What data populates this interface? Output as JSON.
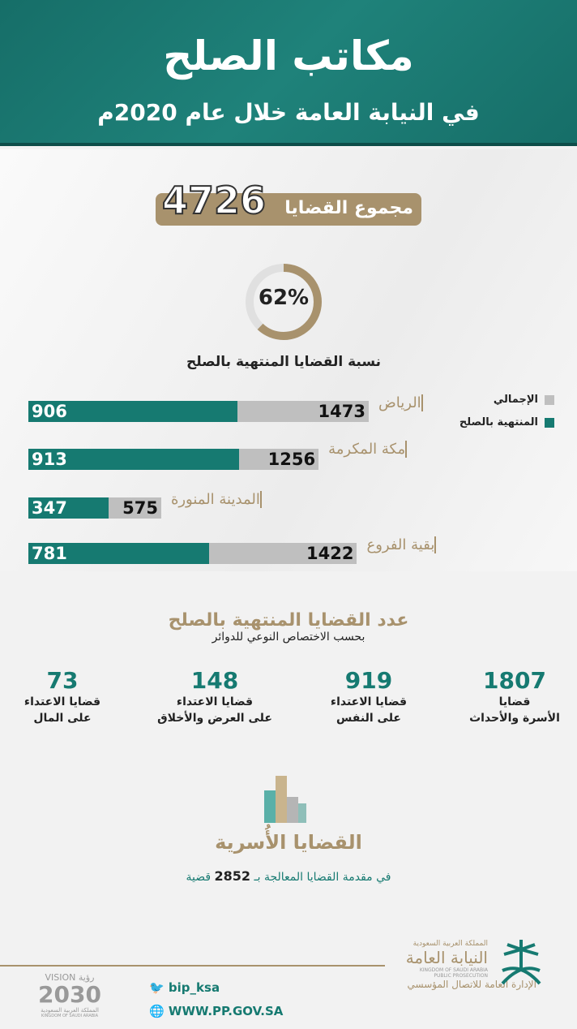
{
  "header": {
    "title": "مكاتب الصلح",
    "subtitle": "في النيابة العامة خلال عام 2020م"
  },
  "total": {
    "label": "مجموع القضايا",
    "value": "4726"
  },
  "donut": {
    "percent": 62,
    "percent_label": "62%",
    "label": "نسبة القضايا المنتهية بالصلح"
  },
  "colors": {
    "teal": "#167a71",
    "gray": "#bfbfbf",
    "gold": "#a8926d"
  },
  "chart_data": {
    "type": "bar",
    "orientation": "horizontal",
    "categories": [
      "الرياض",
      "مكة المكرمة",
      "المدينة المنورة",
      "بقية الفروع"
    ],
    "series": [
      {
        "name": "الإجمالي",
        "values": [
          1473,
          1256,
          575,
          1422
        ]
      },
      {
        "name": "المنتهية بالصلح",
        "values": [
          906,
          913,
          347,
          781
        ]
      }
    ],
    "legend_position": "top-right"
  },
  "section2": {
    "title": "عدد القضايا المنتهية بالصلح",
    "subtitle": "بحسب الاختصاص النوعي للدوائر",
    "stats": [
      {
        "value": "1807",
        "line1": "قضايا",
        "line2": "الأسرة والأحداث"
      },
      {
        "value": "919",
        "line1": "قضايا الاعتداء",
        "line2": "على النفس"
      },
      {
        "value": "148",
        "line1": "قضايا الاعتداء",
        "line2": "على العرض والأخلاق"
      },
      {
        "value": "73",
        "line1": "قضايا الاعتداء",
        "line2": "على المال"
      }
    ]
  },
  "family": {
    "title": "القضايا الأُسرية",
    "pre": "في مقدمة القضايا المعالجة بـ",
    "value": "2852",
    "post": "قضية"
  },
  "footer": {
    "twitter": "bip_ksa",
    "website": "WWW.PP.GOV.SA",
    "org_country": "المملكة العربية السعودية",
    "org_name": "النيابة العامة",
    "org_en1": "KINGDOM OF SAUDI ARABIA",
    "org_en2": "PUBLIC PROSECUTION",
    "org_dept": "الإدارة العامة للاتصال المؤسسي",
    "vision_text": "VISION رؤية",
    "vision_year": "2030",
    "vision_country": "المملكة العربية السعودية",
    "vision_en": "KINGDOM OF SAUDI ARABIA"
  }
}
